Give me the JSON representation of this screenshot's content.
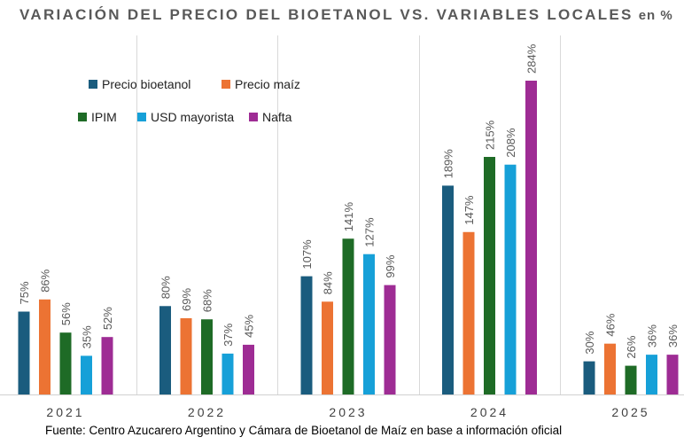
{
  "chart_data": {
    "type": "bar",
    "title": "VARIACIÓN DEL PRECIO DEL BIOETANOL VS. VARIABLES LOCALES",
    "unit": "en %",
    "categories": [
      "2021",
      "2022",
      "2023",
      "2024",
      "2025"
    ],
    "series": [
      {
        "name": "Precio bioetanol",
        "color": "#1a5c7e",
        "values": [
          75,
          80,
          107,
          189,
          30
        ]
      },
      {
        "name": "Precio maíz",
        "color": "#ec7333",
        "values": [
          86,
          69,
          84,
          147,
          46
        ]
      },
      {
        "name": "IPIM",
        "color": "#1e6b26",
        "values": [
          56,
          68,
          141,
          215,
          26
        ]
      },
      {
        "name": "USD mayorista",
        "color": "#16a0d8",
        "values": [
          35,
          37,
          127,
          208,
          36
        ]
      },
      {
        "name": "Nafta",
        "color": "#9e2c94",
        "values": [
          52,
          45,
          99,
          284,
          36
        ]
      }
    ],
    "ylim": [
      0,
      284
    ],
    "value_suffix": "%",
    "grid": false,
    "legend": "top-left",
    "source": "Fuente: Centro Azucarero Argentino y Cámara de Bioetanol de Maíz en base a información oficial"
  }
}
